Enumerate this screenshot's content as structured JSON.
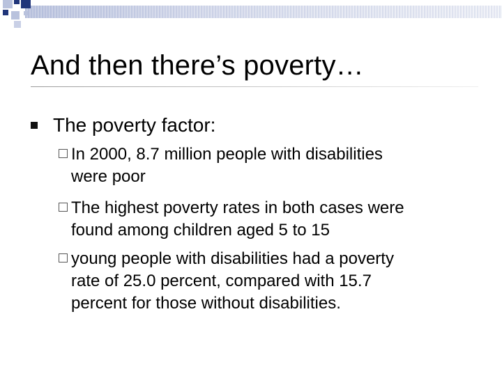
{
  "slide": {
    "title": "And then there’s poverty…",
    "bullets": [
      {
        "text": "The poverty factor:",
        "icon": "filled-square-bullet",
        "sub_bullets": [
          {
            "icon": "hollow-square-bullet",
            "lines": [
              "In 2000, 8.7 million people with disabilities",
              "were poor"
            ]
          },
          {
            "icon": "hollow-square-bullet",
            "lines": [
              "The highest poverty rates in both cases were",
              "found among children aged 5 to 15"
            ]
          },
          {
            "icon": "hollow-square-bullet",
            "lines": [
              "young people with disabilities had a poverty",
              "rate of 25.0 percent, compared with 15.7",
              "percent for those without disabilities."
            ]
          }
        ]
      }
    ]
  },
  "colors": {
    "text": "#000000",
    "decor_dark": "#20357a",
    "decor_light": "#b9c2dd",
    "rule": "#9a9a9a"
  }
}
